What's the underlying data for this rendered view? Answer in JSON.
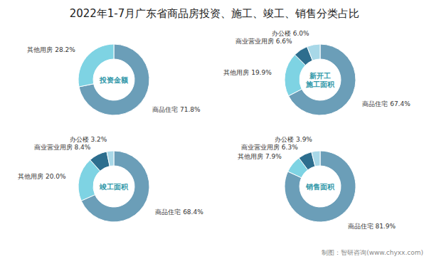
{
  "title": "2022年1-7月广东省商品房投资、施工、竣工、销售分类占比",
  "annotations": [
    "制图：智研咨询(www.chyxx.com)"
  ],
  "chart_data": [
    {
      "type": "pie",
      "title": "投资金额",
      "categories": [
        "商品住宅",
        "其他用房"
      ],
      "values": [
        71.8,
        28.2
      ],
      "value_labels": [
        "71.8%",
        "28.2%"
      ],
      "colors": [
        "#6b9eb8",
        "#7ed3e3"
      ],
      "data_labels": true
    },
    {
      "type": "pie",
      "title": "新开工\n施工面积",
      "categories": [
        "商品住宅",
        "其他用房",
        "商业营业用房",
        "办公楼"
      ],
      "values": [
        67.4,
        19.9,
        6.6,
        6.0
      ],
      "value_labels": [
        "67.4%",
        "19.9%",
        "6.6%",
        "6.0%"
      ],
      "colors": [
        "#6b9eb8",
        "#7ed3e3",
        "#2d6e8e",
        "#a8d8e8"
      ],
      "data_labels": true
    },
    {
      "type": "pie",
      "title": "竣工面积",
      "categories": [
        "商品住宅",
        "其他用房",
        "商业营业用房",
        "办公楼"
      ],
      "values": [
        68.4,
        20.0,
        8.4,
        3.2
      ],
      "value_labels": [
        "68.4%",
        "20.0%",
        "8.4%",
        "3.2%"
      ],
      "colors": [
        "#6b9eb8",
        "#7ed3e3",
        "#2d6e8e",
        "#a8d8e8"
      ],
      "data_labels": true
    },
    {
      "type": "pie",
      "title": "销售面积",
      "categories": [
        "商品住宅",
        "其他用房",
        "商业营业用房",
        "办公楼"
      ],
      "values": [
        81.9,
        7.9,
        6.3,
        3.9
      ],
      "value_labels": [
        "81.9%",
        "7.9%",
        "6.3%",
        "3.9%"
      ],
      "colors": [
        "#6b9eb8",
        "#7ed3e3",
        "#2d6e8e",
        "#a8d8e8"
      ],
      "data_labels": true
    }
  ]
}
